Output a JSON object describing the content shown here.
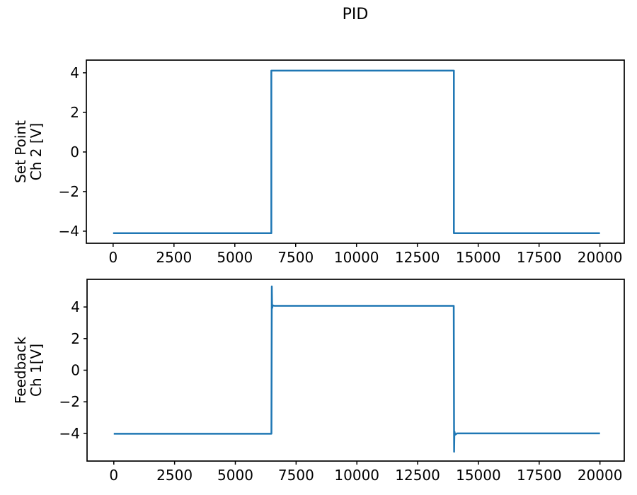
{
  "figure": {
    "title": "PID",
    "background_color": "#ffffff",
    "axes_color": "#000000",
    "text_color": "#000000"
  },
  "chart_data": [
    {
      "type": "line",
      "title": "PID",
      "xlabel": "",
      "ylabel": "Set Point\nCh 2 [V]",
      "xlim": [
        -1100,
        21000
      ],
      "ylim": [
        -4.61,
        4.64
      ],
      "xticks": [
        0,
        2500,
        5000,
        7500,
        10000,
        12500,
        15000,
        17500,
        20000
      ],
      "yticks": [
        -4,
        -2,
        0,
        2,
        4
      ],
      "grid": false,
      "legend": "none",
      "line_color": "#1f77b4",
      "series": [
        {
          "name": "set-point",
          "x": [
            0,
            6500,
            6500,
            14000,
            14000,
            20000
          ],
          "y": [
            -4.1,
            -4.1,
            4.11,
            4.11,
            -4.1,
            -4.1
          ]
        }
      ]
    },
    {
      "type": "line",
      "title": "",
      "xlabel": "",
      "ylabel": "Feedback\nCh 1[V]",
      "xlim": [
        -1100,
        21000
      ],
      "ylim": [
        -5.75,
        5.75
      ],
      "xticks": [
        0,
        2500,
        5000,
        7500,
        10000,
        12500,
        15000,
        17500,
        20000
      ],
      "yticks": [
        -4,
        -2,
        0,
        2,
        4
      ],
      "grid": false,
      "legend": "none",
      "line_color": "#1f77b4",
      "series": [
        {
          "name": "feedback",
          "x": [
            0,
            6485,
            6500,
            6512,
            6540,
            6620,
            13985,
            14000,
            14012,
            14045,
            14120,
            20000
          ],
          "y": [
            -4.02,
            -4.02,
            5.3,
            3.92,
            4.1,
            4.07,
            4.07,
            -5.16,
            -3.88,
            -4.08,
            -4.0,
            -4.0
          ]
        }
      ]
    }
  ]
}
